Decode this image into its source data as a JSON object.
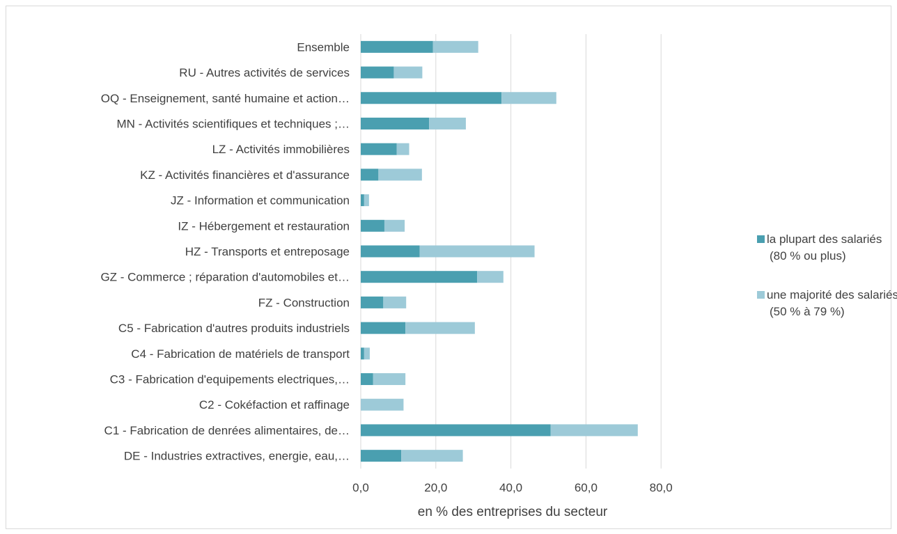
{
  "chart_data": {
    "type": "bar",
    "orientation": "horizontal",
    "stacked": true,
    "categories": [
      "Ensemble",
      "RU - Autres activités de services",
      "OQ - Enseignement, santé humaine et action…",
      "MN - Activités scientifiques et techniques ;…",
      "LZ - Activités immobilières",
      "KZ - Activités financières et d'assurance",
      "JZ - Information et communication",
      "IZ - Hébergement et restauration",
      "HZ - Transports et entreposage",
      "GZ - Commerce ; réparation d'automobiles et…",
      "FZ - Construction",
      "C5 - Fabrication d'autres produits industriels",
      "C4 - Fabrication de matériels de transport",
      "C3 - Fabrication d'equipements electriques,…",
      "C2 - Cokéfaction et raffinage",
      "C1 - Fabrication de denrées alimentaires, de…",
      "DE - Industries extractives,  energie, eau,…"
    ],
    "series": [
      {
        "name": "la plupart des salariés (80 % ou plus)",
        "legend_lines": [
          "la plupart des salariés",
          "(80 % ou plus)"
        ],
        "color": "#4a9fb0",
        "values": [
          19.2,
          8.8,
          37.5,
          18.2,
          9.6,
          4.7,
          0.9,
          6.3,
          15.7,
          31.0,
          6.0,
          11.9,
          0.9,
          3.3,
          0.0,
          50.6,
          10.8
        ]
      },
      {
        "name": "une majorité des salariés (50 % à 79 %)",
        "legend_lines": [
          "une majorité des salariés",
          "(50 % à 79 %)"
        ],
        "color": "#9dcad8",
        "values": [
          12.1,
          7.6,
          14.6,
          9.8,
          3.3,
          11.6,
          1.3,
          5.4,
          30.6,
          7.0,
          6.1,
          18.5,
          1.5,
          8.6,
          11.4,
          23.2,
          16.4
        ]
      }
    ],
    "xlim": [
      0,
      80
    ],
    "xticks": [
      "0,0",
      "20,0",
      "40,0",
      "60,0",
      "80,0"
    ],
    "xtick_values": [
      0,
      20,
      40,
      60,
      80
    ],
    "xlabel": "en % des entreprises du secteur",
    "ylabel": "",
    "title": "",
    "grid": "vertical",
    "legend_position": "right"
  }
}
